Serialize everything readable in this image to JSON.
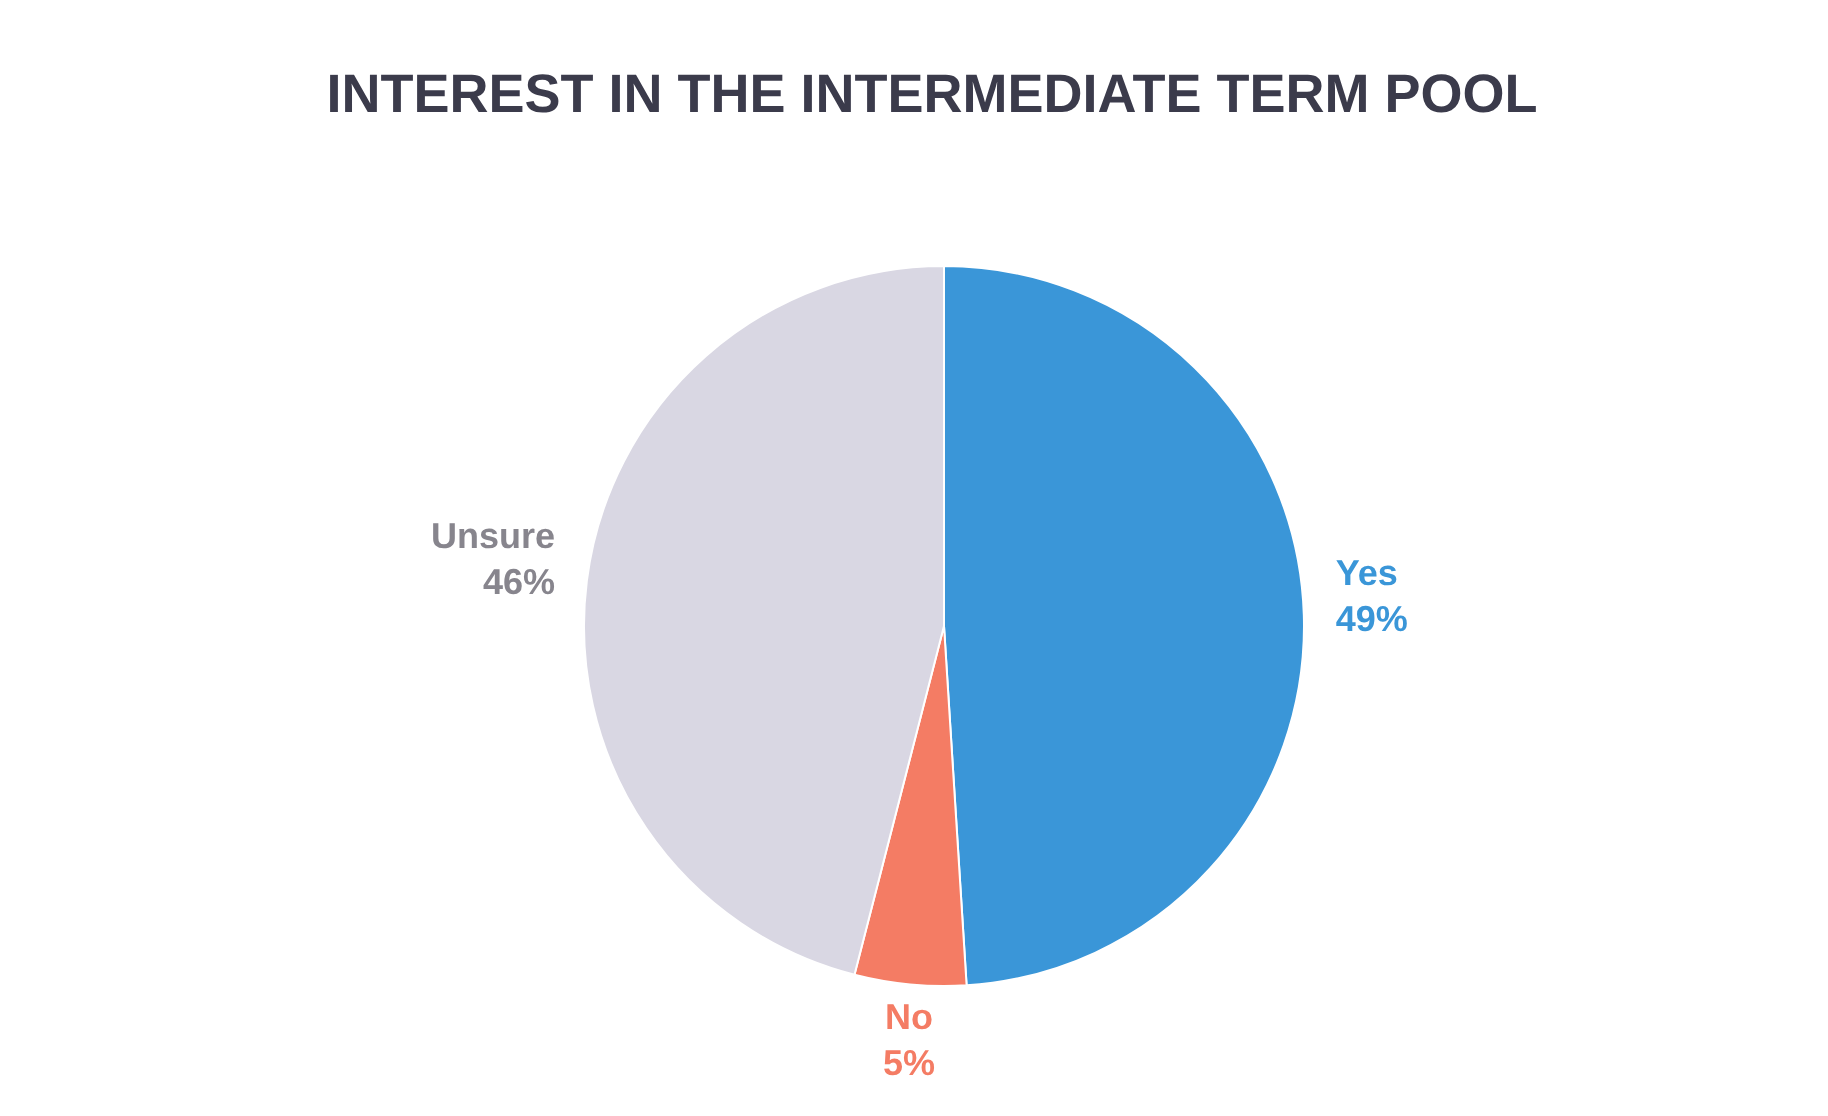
{
  "chart_data": {
    "type": "pie",
    "title": "INTEREST IN THE INTERMEDIATE TERM POOL",
    "categories": [
      "Yes",
      "No",
      "Unsure"
    ],
    "values": [
      49,
      5,
      46
    ],
    "colors": [
      "#3a96d8",
      "#f47c64",
      "#d9d7e3"
    ],
    "value_labels": [
      "49%",
      "5%",
      "46%"
    ],
    "legend": false
  }
}
